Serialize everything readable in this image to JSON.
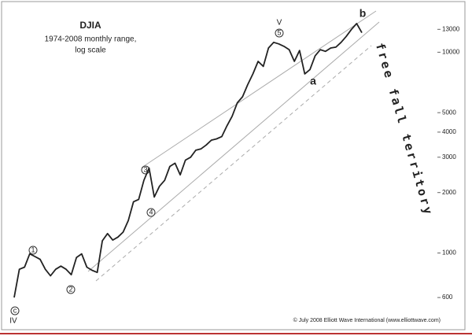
{
  "chart_data": {
    "type": "line",
    "title": "DJIA",
    "subtitle": [
      "1974-2008 monthly range,",
      "log scale"
    ],
    "log_scale": true,
    "color": "#222222",
    "values": [
      600,
      830,
      850,
      990,
      960,
      930,
      830,
      770,
      830,
      860,
      830,
      780,
      950,
      990,
      850,
      820,
      800,
      1150,
      1250,
      1160,
      1200,
      1270,
      1450,
      1800,
      1850,
      2300,
      2650,
      1900,
      2150,
      2300,
      2700,
      2800,
      2450,
      2900,
      3000,
      3250,
      3300,
      3450,
      3650,
      3700,
      3800,
      4300,
      4800,
      5600,
      6000,
      6900,
      7800,
      9000,
      8500,
      10500,
      11200,
      11000,
      10700,
      10300,
      9000,
      10200,
      7800,
      8200,
      9600,
      10300,
      10100,
      10500,
      10600,
      11200,
      12000,
      13000,
      13900,
      12500
    ],
    "ylim": [
      450,
      17400
    ],
    "yticks": [
      600,
      1000,
      2000,
      3000,
      4000,
      5000,
      10000,
      13000
    ],
    "axis_side": "right",
    "annotations": {
      "wave_iv": "IV",
      "wave_c": "c",
      "wave_1": "1",
      "wave_2": "2",
      "wave_3": "3",
      "wave_4": "4",
      "wave_5": "5",
      "wave_v": "V",
      "wave_a": "a",
      "wave_b": "b",
      "free_fall": "free fall territory"
    },
    "credit": "© July 2008 Elliott Wave International (www.elliottwave.com)"
  }
}
